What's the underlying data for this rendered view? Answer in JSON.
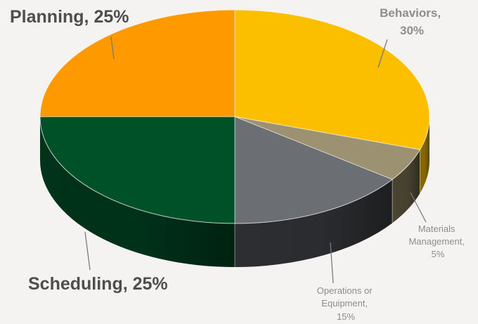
{
  "chart_data": {
    "type": "pie",
    "style": "3d",
    "title": "",
    "slices": [
      {
        "label": "Behaviors",
        "value": 30,
        "color": "#fbbf00",
        "side_color": "#8c6a00"
      },
      {
        "label": "Materials Management",
        "value": 5,
        "color": "#9c9272",
        "side_color": "#4a4432"
      },
      {
        "label": "Operations or Equipment",
        "value": 15,
        "color": "#6b6e72",
        "side_color": "#2d2e31"
      },
      {
        "label": "Scheduling",
        "value": 25,
        "color": "#005127",
        "side_color": "#00331a"
      },
      {
        "label": "Planning",
        "value": 25,
        "color": "#ff9900",
        "side_color": "#b86d00"
      }
    ],
    "labels": {
      "behaviors": [
        "Behaviors,",
        "30%"
      ],
      "materials": [
        "Materials",
        "Management,",
        "5%"
      ],
      "operations": [
        "Operations or",
        "Equipment,",
        "15%"
      ],
      "scheduling": "Scheduling, 25%",
      "planning": "Planning, 25%"
    },
    "label_colors": {
      "planning": "#4e4e4e",
      "scheduling": "#4e4e4e",
      "behaviors": "#8d8d8d",
      "materials": "#8d8d8d",
      "operations": "#8d8d8d"
    }
  }
}
